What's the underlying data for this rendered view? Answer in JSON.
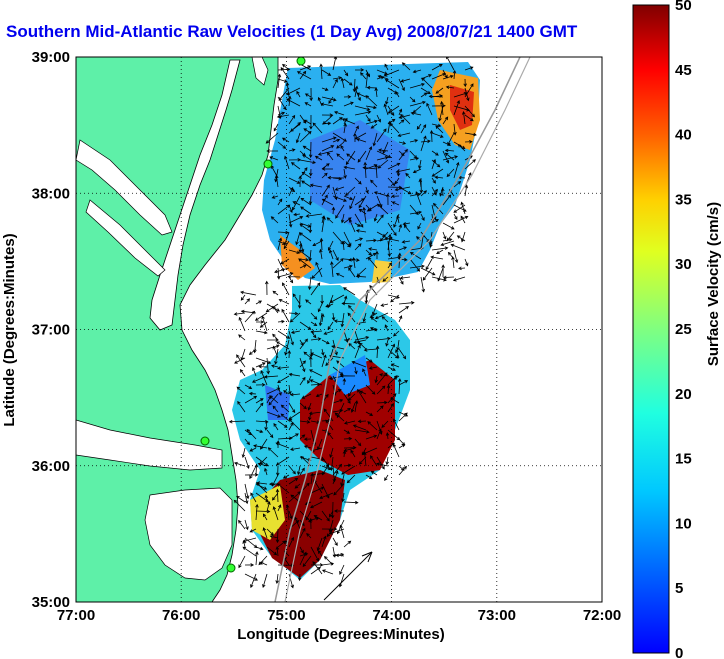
{
  "title": "Southern Mid-Atlantic Raw Velocities (1 Day Avg) 2008/07/21 1400 GMT",
  "map": {
    "xlabel": "Longitude (Degrees:Minutes)",
    "ylabel": "Latitude (Degrees:Minutes)",
    "x_ticks": [
      "77:00",
      "76:00",
      "75:00",
      "74:00",
      "73:00",
      "72:00"
    ],
    "y_ticks": [
      "39:00",
      "38:00",
      "37:00",
      "36:00",
      "35:00"
    ],
    "lon_range": [
      -77,
      -72
    ],
    "lat_range": [
      35,
      39
    ],
    "land_color": "#5ef0a8",
    "grid": "dotted"
  },
  "colorbar": {
    "label": "Surface Velocity (cm/s)",
    "ticks": [
      "50",
      "45",
      "40",
      "35",
      "30",
      "25",
      "20",
      "15",
      "10",
      "5",
      "0"
    ],
    "range": [
      0,
      50
    ],
    "colormap": "jet"
  }
}
